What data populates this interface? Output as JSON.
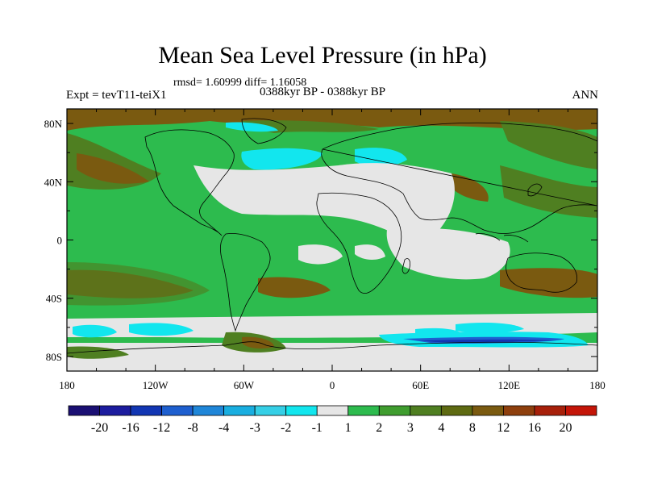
{
  "title": "Mean Sea Level Pressure (in hPa)",
  "stats": "rmsd= 1.60999 diff= 1.16058",
  "experiment": "Expt = tevT11-teiX1",
  "period": "0388kyr BP - 0388kyr BP",
  "season": "ANN",
  "map": {
    "lon_range": [
      -180,
      180
    ],
    "lat_range": [
      -90,
      90
    ],
    "x_ticks": [
      {
        "value": -180,
        "label": "180"
      },
      {
        "value": -120,
        "label": "120W"
      },
      {
        "value": -60,
        "label": "60W"
      },
      {
        "value": 0,
        "label": "0"
      },
      {
        "value": 60,
        "label": "60E"
      },
      {
        "value": 120,
        "label": "120E"
      },
      {
        "value": 180,
        "label": "180"
      }
    ],
    "y_ticks": [
      {
        "value": 80,
        "label": "80N"
      },
      {
        "value": 40,
        "label": "40N"
      },
      {
        "value": 0,
        "label": "0"
      },
      {
        "value": -40,
        "label": "40S"
      },
      {
        "value": -80,
        "label": "80S"
      }
    ]
  },
  "colorbar": {
    "colors": [
      "#1a0f73",
      "#1c1c9e",
      "#1236b3",
      "#1e5fcf",
      "#1f86d8",
      "#19aee0",
      "#35cfe6",
      "#12e6ee",
      "#e6e6e6",
      "#2dbb4e",
      "#3f9d2f",
      "#4f7f21",
      "#5e6a12",
      "#7a5a10",
      "#8e3f0d",
      "#a7200a",
      "#c41508"
    ],
    "labels": [
      "-20",
      "-16",
      "-12",
      "-8",
      "-4",
      "-3",
      "-2",
      "-1",
      "1",
      "2",
      "3",
      "4",
      "8",
      "12",
      "16",
      "20"
    ]
  }
}
